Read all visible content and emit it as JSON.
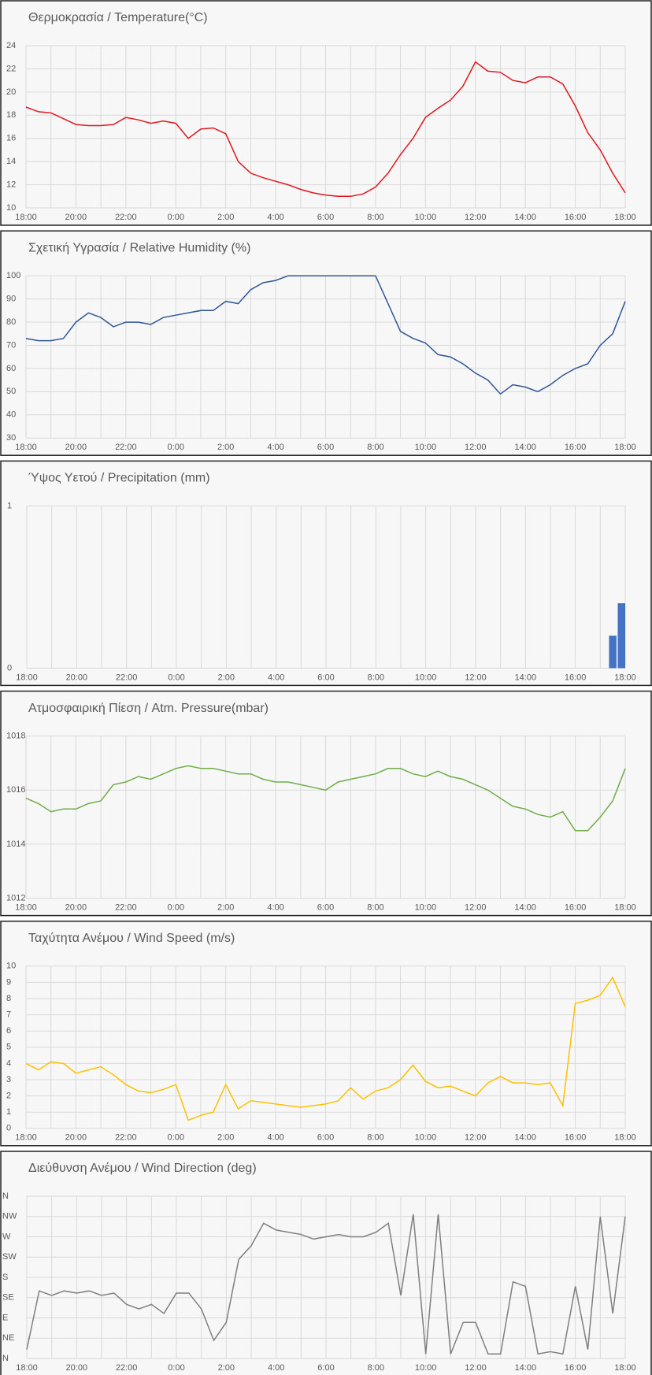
{
  "chart_data": [
    {
      "type": "line",
      "title": "Θερμοκρασία / Temperature(°C)",
      "color": "#e3151d",
      "grid": true,
      "categories": [
        "18:00",
        null,
        null,
        null,
        "20:00",
        null,
        null,
        null,
        "22:00",
        null,
        null,
        null,
        "0:00",
        null,
        null,
        null,
        "2:00",
        null,
        null,
        null,
        "4:00",
        null,
        null,
        null,
        "6:00",
        null,
        null,
        null,
        "8:00",
        null,
        null,
        null,
        "10:00",
        null,
        null,
        null,
        "12:00",
        null,
        null,
        null,
        "14:00",
        null,
        null,
        null,
        "16:00",
        null,
        null,
        null,
        "18:00"
      ],
      "values": [
        18.7,
        18.3,
        18.2,
        17.7,
        17.2,
        17.1,
        17.1,
        17.2,
        17.8,
        17.6,
        17.3,
        17.5,
        17.3,
        16.0,
        16.8,
        16.9,
        16.4,
        14.0,
        13.0,
        12.6,
        12.3,
        12.0,
        11.6,
        11.3,
        11.1,
        11.0,
        11.0,
        11.2,
        11.8,
        13.0,
        14.6,
        16.0,
        17.8,
        18.6,
        19.3,
        20.5,
        22.6,
        21.8,
        21.7,
        21.0,
        20.8,
        21.3,
        21.3,
        20.7,
        18.8,
        16.5,
        15.0,
        13.0,
        11.3
      ],
      "ylim": [
        10,
        24
      ],
      "yticks": [
        10,
        12,
        14,
        16,
        18,
        20,
        22,
        24
      ]
    },
    {
      "type": "line",
      "title": "Σχετική Υγρασία / Relative Humidity (%)",
      "color": "#2f5597",
      "grid": true,
      "categories": [
        "18:00",
        null,
        null,
        null,
        "20:00",
        null,
        null,
        null,
        "22:00",
        null,
        null,
        null,
        "0:00",
        null,
        null,
        null,
        "2:00",
        null,
        null,
        null,
        "4:00",
        null,
        null,
        null,
        "6:00",
        null,
        null,
        null,
        "8:00",
        null,
        null,
        null,
        "10:00",
        null,
        null,
        null,
        "12:00",
        null,
        null,
        null,
        "14:00",
        null,
        null,
        null,
        "16:00",
        null,
        null,
        null,
        "18:00"
      ],
      "values": [
        73,
        72,
        72,
        73,
        80,
        84,
        82,
        78,
        80,
        80,
        79,
        82,
        83,
        84,
        85,
        85,
        89,
        88,
        94,
        97,
        98,
        100,
        100,
        100,
        100,
        100,
        100,
        100,
        100,
        88,
        76,
        73,
        71,
        66,
        65,
        62,
        58,
        55,
        49,
        53,
        52,
        50,
        53,
        57,
        60,
        62,
        70,
        75,
        89
      ],
      "ylim": [
        30,
        100
      ],
      "yticks": [
        30,
        40,
        50,
        60,
        70,
        80,
        90,
        100
      ]
    },
    {
      "type": "bar",
      "title": "Ύψος Υετού / Precipitation (mm)",
      "color": "#4472c4",
      "grid": false,
      "categories": [
        "18:00",
        null,
        null,
        null,
        "20:00",
        null,
        null,
        null,
        "22:00",
        null,
        null,
        null,
        "0:00",
        null,
        null,
        null,
        "2:00",
        null,
        null,
        null,
        "4:00",
        null,
        null,
        null,
        "6:00",
        null,
        null,
        null,
        "8:00",
        null,
        null,
        null,
        "10:00",
        null,
        null,
        null,
        "12:00",
        null,
        null,
        null,
        "14:00",
        null,
        null,
        null,
        "16:00",
        null,
        null,
        null,
        "18:00"
      ],
      "values": [
        0,
        0,
        0,
        0,
        0,
        0,
        0,
        0,
        0,
        0,
        0,
        0,
        0,
        0,
        0,
        0,
        0,
        0,
        0,
        0,
        0,
        0,
        0,
        0,
        0,
        0,
        0,
        0,
        0,
        0,
        0,
        0,
        0,
        0,
        0,
        0,
        0,
        0,
        0,
        0,
        0,
        0,
        0,
        0,
        0,
        0,
        0,
        0.2,
        0.4
      ],
      "ylim": [
        0,
        1
      ],
      "yticks": [
        0,
        1
      ]
    },
    {
      "type": "line",
      "title": "Ατμοσφαιρική Πίεση / Atm. Pressure(mbar)",
      "color": "#70ad47",
      "grid": true,
      "categories": [
        "18:00",
        null,
        null,
        null,
        "20:00",
        null,
        null,
        null,
        "22:00",
        null,
        null,
        null,
        "0:00",
        null,
        null,
        null,
        "2:00",
        null,
        null,
        null,
        "4:00",
        null,
        null,
        null,
        "6:00",
        null,
        null,
        null,
        "8:00",
        null,
        null,
        null,
        "10:00",
        null,
        null,
        null,
        "12:00",
        null,
        null,
        null,
        "14:00",
        null,
        null,
        null,
        "16:00",
        null,
        null,
        null,
        "18:00"
      ],
      "values": [
        1015.7,
        1015.5,
        1015.2,
        1015.3,
        1015.3,
        1015.5,
        1015.6,
        1016.2,
        1016.3,
        1016.5,
        1016.4,
        1016.6,
        1016.8,
        1016.9,
        1016.8,
        1016.8,
        1016.7,
        1016.6,
        1016.6,
        1016.4,
        1016.3,
        1016.3,
        1016.2,
        1016.1,
        1016.0,
        1016.3,
        1016.4,
        1016.5,
        1016.6,
        1016.8,
        1016.8,
        1016.6,
        1016.5,
        1016.7,
        1016.5,
        1016.4,
        1016.2,
        1016.0,
        1015.7,
        1015.4,
        1015.3,
        1015.1,
        1015.0,
        1015.2,
        1014.5,
        1014.5,
        1015.0,
        1015.6,
        1016.8
      ],
      "ylim": [
        1012,
        1018
      ],
      "yticks": [
        1012,
        1014,
        1016,
        1018
      ]
    },
    {
      "type": "line",
      "title": "Ταχύτητα Ανέμου / Wind Speed (m/s)",
      "color": "#ffc000",
      "grid": true,
      "categories": [
        "18:00",
        null,
        null,
        null,
        "20:00",
        null,
        null,
        null,
        "22:00",
        null,
        null,
        null,
        "0:00",
        null,
        null,
        null,
        "2:00",
        null,
        null,
        null,
        "4:00",
        null,
        null,
        null,
        "6:00",
        null,
        null,
        null,
        "8:00",
        null,
        null,
        null,
        "10:00",
        null,
        null,
        null,
        "12:00",
        null,
        null,
        null,
        "14:00",
        null,
        null,
        null,
        "16:00",
        null,
        null,
        null,
        "18:00"
      ],
      "values": [
        4.0,
        3.6,
        4.1,
        4.0,
        3.4,
        3.6,
        3.8,
        3.3,
        2.7,
        2.3,
        2.2,
        2.4,
        2.7,
        0.5,
        0.8,
        1.0,
        2.7,
        1.2,
        1.7,
        1.6,
        1.5,
        1.4,
        1.3,
        1.4,
        1.5,
        1.7,
        2.5,
        1.8,
        2.3,
        2.5,
        3.0,
        3.9,
        2.9,
        2.5,
        2.6,
        2.3,
        2.0,
        2.8,
        3.2,
        2.8,
        2.8,
        2.7,
        2.8,
        1.4,
        7.7,
        7.9,
        8.2,
        9.3,
        7.5
      ],
      "ylim": [
        0,
        10
      ],
      "yticks": [
        0,
        1,
        2,
        3,
        4,
        5,
        6,
        7,
        8,
        9,
        10
      ]
    },
    {
      "type": "line",
      "title": "Διεύθυνση Ανέμου / Wind Direction (deg)",
      "color": "#7f7f7f",
      "grid": true,
      "categories": [
        "18:00",
        null,
        null,
        null,
        "20:00",
        null,
        null,
        null,
        "22:00",
        null,
        null,
        null,
        "0:00",
        null,
        null,
        null,
        "2:00",
        null,
        null,
        null,
        "4:00",
        null,
        null,
        null,
        "6:00",
        null,
        null,
        null,
        "8:00",
        null,
        null,
        null,
        "10:00",
        null,
        null,
        null,
        "12:00",
        null,
        null,
        null,
        "14:00",
        null,
        null,
        null,
        "16:00",
        null,
        null,
        null,
        "18:00"
      ],
      "values": [
        20,
        150,
        140,
        150,
        145,
        150,
        140,
        145,
        120,
        110,
        120,
        100,
        145,
        145,
        110,
        40,
        80,
        220,
        250,
        300,
        285,
        280,
        275,
        265,
        270,
        275,
        270,
        270,
        280,
        300,
        140,
        320,
        10,
        320,
        10,
        80,
        80,
        10,
        10,
        170,
        160,
        10,
        15,
        10,
        160,
        20,
        315,
        100,
        315
      ],
      "ylim": [
        0,
        360
      ],
      "yticks": [
        {
          "value": 0,
          "label": "N"
        },
        {
          "value": 45,
          "label": "NE"
        },
        {
          "value": 90,
          "label": "E"
        },
        {
          "value": 135,
          "label": "SE"
        },
        {
          "value": 180,
          "label": "S"
        },
        {
          "value": 225,
          "label": "SW"
        },
        {
          "value": 270,
          "label": "W"
        },
        {
          "value": 315,
          "label": "NW"
        },
        {
          "value": 360,
          "label": "N"
        }
      ]
    }
  ]
}
